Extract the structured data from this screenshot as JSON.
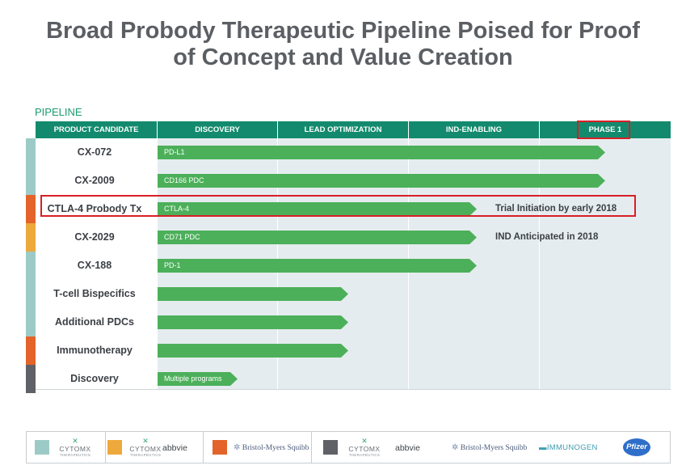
{
  "slide": {
    "title_line1": "Broad Probody Therapeutic Pipeline Poised for Proof",
    "title_line2": "of Concept and Value Creation",
    "section_label": "PIPELINE"
  },
  "header": {
    "product_candidate": "PRODUCT CANDIDATE",
    "discovery": "DISCOVERY",
    "lead_optimization": "LEAD OPTIMIZATION",
    "ind_enabling": "IND-ENABLING",
    "phase1": "PHASE 1"
  },
  "stage_scale": {
    "stages": [
      "DISCOVERY",
      "LEAD OPTIMIZATION",
      "IND-ENABLING",
      "PHASE 1"
    ]
  },
  "rows": [
    {
      "name": "CX-072",
      "bar_label": "PD-L1",
      "progress_stages": 3.5,
      "note": "",
      "stripe_color": "#9ccbc7"
    },
    {
      "name": "CX-2009",
      "bar_label": "CD166 PDC",
      "progress_stages": 3.5,
      "note": "",
      "stripe_color": "#9ccbc7"
    },
    {
      "name": "CTLA-4 Probody Tx",
      "bar_label": "CTLA-4",
      "progress_stages": 2.52,
      "note": "Trial Initiation by early 2018",
      "stripe_color": "#e3632a"
    },
    {
      "name": "CX-2029",
      "bar_label": "CD71 PDC",
      "progress_stages": 2.52,
      "note": "IND Anticipated in 2018",
      "stripe_color": "#eea93c"
    },
    {
      "name": "CX-188",
      "bar_label": "PD-1",
      "progress_stages": 2.52,
      "note": "",
      "stripe_color": "#9ccbc7"
    },
    {
      "name": "T-cell Bispecifics",
      "bar_label": "",
      "progress_stages": 1.54,
      "note": "",
      "stripe_color": "#9ccbc7"
    },
    {
      "name": "Additional PDCs",
      "bar_label": "",
      "progress_stages": 1.54,
      "note": "",
      "stripe_color": "#9ccbc7"
    },
    {
      "name": "Immunotherapy",
      "bar_label": "",
      "progress_stages": 1.54,
      "note": "",
      "stripe_color": "#e3632a"
    },
    {
      "name": "Discovery",
      "bar_label": "Multiple programs",
      "progress_stages": 0.67,
      "note": "",
      "stripe_color": "#5f6166"
    }
  ],
  "colors": {
    "bar_green": "#4cb05a",
    "header_green": "#138a6e",
    "highlight_red": "#d81f26",
    "grid_bg": "#e5ecef"
  },
  "footer": {
    "partners": [
      {
        "swatch": "#9ccbc7",
        "logos": [
          "CYTOMX THERAPEUTICS"
        ]
      },
      {
        "swatch": "#eea93c",
        "logos": [
          "CYTOMX THERAPEUTICS",
          "abbvie"
        ]
      },
      {
        "swatch": "#e3632a",
        "logos": [
          "Bristol-Myers Squibb"
        ]
      },
      {
        "swatch": "#5f6166",
        "logos": [
          "CYTOMX THERAPEUTICS",
          "abbvie",
          "Bristol-Myers Squibb",
          "IMMUNOGEN",
          "Pfizer"
        ]
      }
    ],
    "cytomx_name": "CYTOMX",
    "cytomx_sub": "THERAPEUTICS",
    "abbvie": "abbvie",
    "bms": "Bristol-Myers Squibb",
    "immunogen": "IMMUNOGEN",
    "pfizer": "Pfizer"
  }
}
